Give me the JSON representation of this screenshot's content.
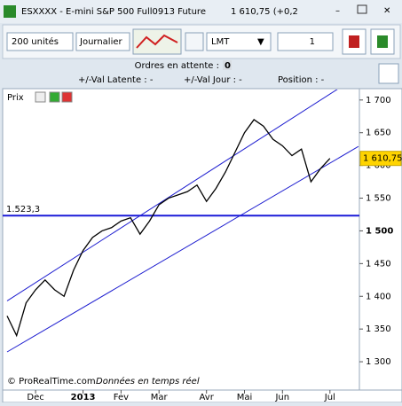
{
  "window": {
    "title": "ESXXXX - E-mini S&P 500 Full0913 Future",
    "price_text": "1 610,75 (+0,2"
  },
  "toolbar": {
    "quantity": "200 unités",
    "period": "Journalier",
    "order_type": "LMT",
    "amount": "1"
  },
  "info": {
    "pending_label": "Ordres en attente :",
    "pending_value": "0",
    "latent": "+/-Val Latente : -",
    "day": "+/-Val Jour : -",
    "position": "Position : -"
  },
  "panel": {
    "title": "Prix",
    "footer_brand": "© ProRealTime.com",
    "footer_note": "Données en temps réel"
  },
  "chart_data": {
    "type": "line",
    "categories": [
      null,
      null,
      null,
      "Dec",
      null,
      null,
      null,
      null,
      "2013",
      null,
      null,
      null,
      "Fev",
      null,
      null,
      null,
      "Mar",
      null,
      null,
      null,
      null,
      "Avr",
      null,
      null,
      null,
      "Mai",
      null,
      null,
      null,
      "Jun",
      null,
      null,
      null,
      null,
      "Jul",
      null,
      null,
      null
    ],
    "series": [
      {
        "color": "#000000",
        "values": [
          1370,
          1340,
          1390,
          1410,
          1425,
          1410,
          1400,
          1440,
          1470,
          1490,
          1500,
          1505,
          1515,
          1520,
          1495,
          1515,
          1540,
          1550,
          1555,
          1560,
          1570,
          1545,
          1565,
          1590,
          1620,
          1650,
          1670,
          1660,
          1640,
          1630,
          1615,
          1625,
          1575,
          1595,
          1610.75,
          null,
          null,
          null
        ]
      }
    ],
    "last_label": "1 610,75",
    "trend_lines": [
      {
        "color": "#1f1fd0",
        "start": 1393,
        "end": 1737
      },
      {
        "color": "#1f1fd0",
        "start": 1315,
        "end": 1629
      }
    ],
    "hline": {
      "value": 1523.3,
      "value_label": "1.523,3",
      "color": "#1a1ad8"
    },
    "ylim": [
      1273,
      1716
    ],
    "yticks": [
      {
        "value": 1300,
        "label": "1 300"
      },
      {
        "value": 1350,
        "label": "1 350"
      },
      {
        "value": 1400,
        "label": "1 400"
      },
      {
        "value": 1450,
        "label": "1 450"
      },
      {
        "value": 1500,
        "label": "1 500"
      },
      {
        "value": 1550,
        "label": "1 550"
      },
      {
        "value": 1600,
        "label": "1 600"
      },
      {
        "value": 1650,
        "label": "1 650"
      },
      {
        "value": 1700,
        "label": "1 700"
      }
    ],
    "bold_tick": 1500
  }
}
